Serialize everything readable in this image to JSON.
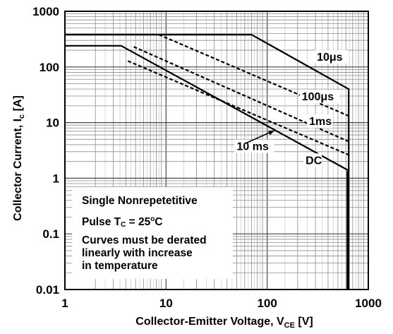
{
  "chart_data": {
    "type": "line",
    "xscale": "log",
    "yscale": "log",
    "xlim": [
      1,
      1000
    ],
    "ylim": [
      0.01,
      1000
    ],
    "grid": true,
    "x_tick_labels": [
      "1",
      "10",
      "100",
      "1000"
    ],
    "y_tick_labels": [
      "1000",
      "100",
      "10",
      "1",
      "0.1",
      "0.01"
    ],
    "xlabel_main": "Collector-Emitter Voltage, V",
    "xlabel_sub": "CE",
    "xlabel_unit": " [V]",
    "ylabel_main": "Collector Current, I",
    "ylabel_sub": "c",
    "ylabel_unit": " [A]",
    "colors": {
      "curve": "#000000",
      "grid": "#8c8c8c",
      "background": "#ffffff"
    },
    "series": [
      {
        "name": "10μs",
        "style": "solid",
        "x": [
          1,
          70,
          640,
          640
        ],
        "y": [
          380,
          380,
          40,
          0.01
        ]
      },
      {
        "name": "100μs",
        "style": "dashed",
        "x": [
          8.5,
          650
        ],
        "y": [
          380,
          13
        ]
      },
      {
        "name": "1ms",
        "style": "dashed",
        "x": [
          4.8,
          650
        ],
        "y": [
          230,
          4.5
        ]
      },
      {
        "name": "10 ms",
        "style": "dashed",
        "x": [
          4.2,
          650
        ],
        "y": [
          128,
          2.6
        ]
      },
      {
        "name": "DC",
        "style": "solid",
        "x": [
          1,
          3.6,
          650
        ],
        "y": [
          240,
          240,
          1.35
        ]
      },
      {
        "name": "",
        "style": "solid",
        "x": [
          620,
          620
        ],
        "y": [
          1.35,
          0.01
        ]
      }
    ],
    "annotations": [
      {
        "text": "10μs",
        "x": 310,
        "y": 130
      },
      {
        "text": "100μs",
        "x": 220,
        "y": 25
      },
      {
        "text": "1ms",
        "x": 260,
        "y": 9
      },
      {
        "text": "10 ms",
        "x": 50,
        "y": 3.2
      },
      {
        "text": "DC",
        "x": 240,
        "y": 1.8
      }
    ],
    "notes": {
      "line1": "Single Nonrepetetitive",
      "line2_prefix": "Pulse  T",
      "line2_sub": "C",
      "line2_mid": " = 25",
      "line2_sup": "o",
      "line2_suffix": "C",
      "line3": "Curves must be derated",
      "line4": "linearly with increase",
      "line5": "in temperature"
    }
  }
}
